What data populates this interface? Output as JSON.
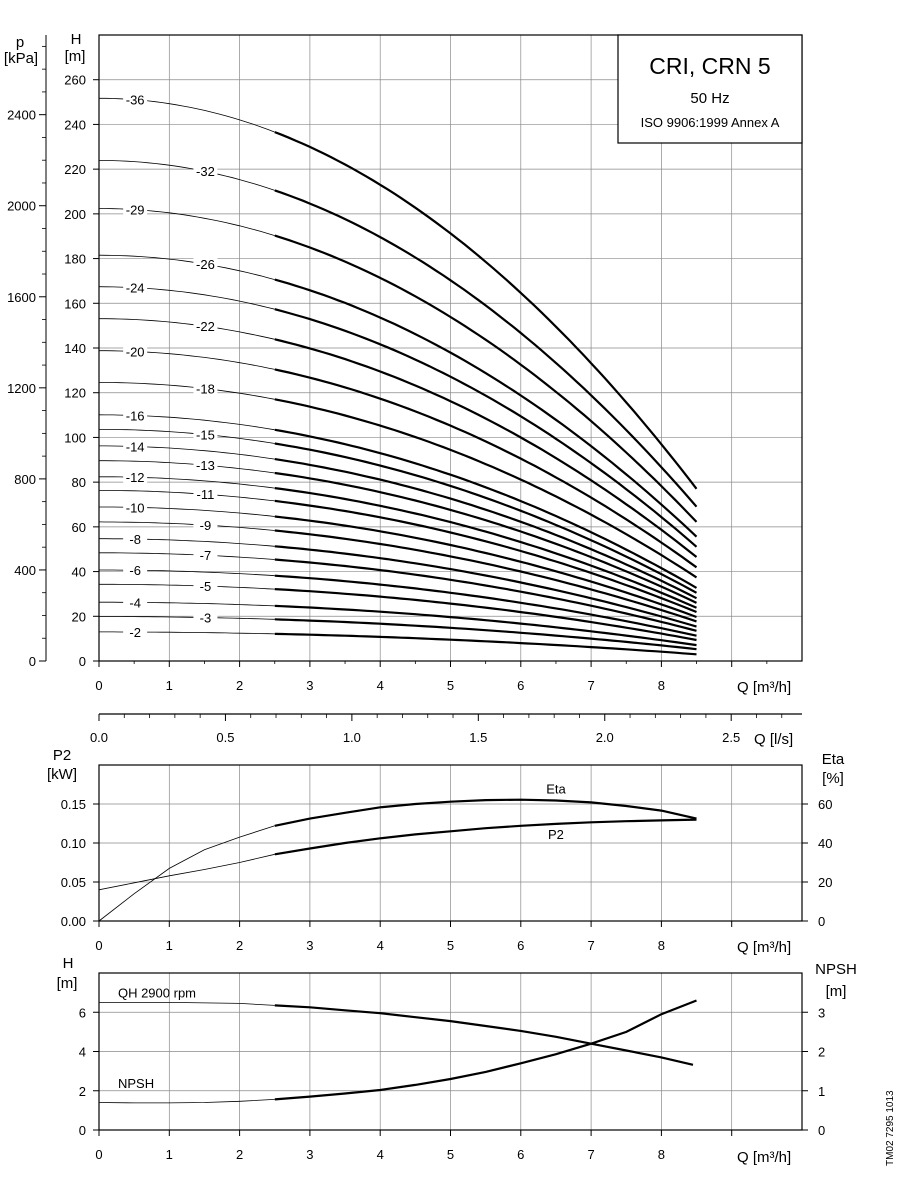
{
  "legend": {
    "title": "CRI, CRN 5",
    "frequency": "50 Hz",
    "standard": "ISO 9906:1999 Annex A"
  },
  "reference": "TM02 7295 1013",
  "chart_data": [
    {
      "type": "line",
      "id": "qh-curves",
      "ylabel": "H",
      "yunit": "[m]",
      "y2label": "p",
      "y2unit": "[kPa]",
      "xlabel": "Q [m³/h]",
      "xlim": [
        0,
        10
      ],
      "ylim": [
        0,
        280
      ],
      "y2lim": [
        0,
        2750
      ],
      "xticks": [
        0,
        1,
        2,
        3,
        4,
        5,
        6,
        7,
        8
      ],
      "yticks": [
        0,
        20,
        40,
        60,
        80,
        100,
        120,
        140,
        160,
        180,
        200,
        220,
        240,
        260
      ],
      "y2ticks": [
        0,
        400,
        800,
        1200,
        1600,
        2000,
        2400
      ],
      "q_operating_start": 2.5,
      "q_end": 8.5,
      "series": [
        {
          "name": "-2",
          "h0": 13.0,
          "h8_5": 3.0,
          "label_q": 0.5
        },
        {
          "name": "-3",
          "h0": 19.9,
          "h8_5": 5.3,
          "label_q": 1.5
        },
        {
          "name": "-4",
          "h0": 26.3,
          "h8_5": 7.1,
          "label_q": 0.5
        },
        {
          "name": "-5",
          "h0": 34.3,
          "h8_5": 9.4,
          "label_q": 1.5
        },
        {
          "name": "-6",
          "h0": 40.7,
          "h8_5": 11.3,
          "label_q": 0.5
        },
        {
          "name": "-7",
          "h0": 48.4,
          "h8_5": 13.5,
          "label_q": 1.5
        },
        {
          "name": "-8",
          "h0": 54.7,
          "h8_5": 15.4,
          "label_q": 0.5
        },
        {
          "name": "-9",
          "h0": 62.2,
          "h8_5": 17.7,
          "label_q": 1.5
        },
        {
          "name": "-10",
          "h0": 68.9,
          "h8_5": 19.7,
          "label_q": 0.5
        },
        {
          "name": "-11",
          "h0": 76.3,
          "h8_5": 21.9,
          "label_q": 1.5
        },
        {
          "name": "-12",
          "h0": 82.4,
          "h8_5": 23.8,
          "label_q": 0.5
        },
        {
          "name": "-13",
          "h0": 89.6,
          "h8_5": 26.0,
          "label_q": 1.5
        },
        {
          "name": "-14",
          "h0": 96.2,
          "h8_5": 28.1,
          "label_q": 0.5
        },
        {
          "name": "-15",
          "h0": 103.6,
          "h8_5": 30.5,
          "label_q": 1.5
        },
        {
          "name": "-16",
          "h0": 110.1,
          "h8_5": 32.7,
          "label_q": 0.5
        },
        {
          "name": "-18",
          "h0": 124.6,
          "h8_5": 37.4,
          "label_q": 1.5
        },
        {
          "name": "-20",
          "h0": 138.8,
          "h8_5": 41.9,
          "label_q": 0.5
        },
        {
          "name": "-22",
          "h0": 153.1,
          "h8_5": 46.5,
          "label_q": 1.5
        },
        {
          "name": "-24",
          "h0": 167.4,
          "h8_5": 51.1,
          "label_q": 0.5
        },
        {
          "name": "-26",
          "h0": 181.5,
          "h8_5": 55.6,
          "label_q": 1.5
        },
        {
          "name": "-29",
          "h0": 202.4,
          "h8_5": 62.2,
          "label_q": 0.5
        },
        {
          "name": "-32",
          "h0": 223.9,
          "h8_5": 69.0,
          "label_q": 1.5
        },
        {
          "name": "-36",
          "h0": 251.7,
          "h8_5": 77.0,
          "label_q": 0.5
        }
      ]
    },
    {
      "type": "line",
      "id": "flow-ls-axis",
      "xlabel": "Q [l/s]",
      "xlim": [
        0,
        2.78
      ],
      "xticks": [
        0.0,
        0.5,
        1.0,
        1.5,
        2.0,
        2.5
      ],
      "xtick_labels": [
        "0.0",
        "0.5",
        "1.0",
        "1.5",
        "2.0",
        "2.5"
      ]
    },
    {
      "type": "line",
      "id": "power-efficiency",
      "ylabel": "P2",
      "yunit": "[kW]",
      "y2label": "Eta",
      "y2unit": "[%]",
      "xlabel": "Q [m³/h]",
      "xlim": [
        0,
        10
      ],
      "ylim": [
        0,
        0.2
      ],
      "y2lim": [
        0,
        80
      ],
      "xticks": [
        0,
        1,
        2,
        3,
        4,
        5,
        6,
        7,
        8
      ],
      "yticks": [
        0.0,
        0.05,
        0.1,
        0.15
      ],
      "ytick_labels": [
        "0.00",
        "0.05",
        "0.10",
        "0.15"
      ],
      "y2ticks": [
        0,
        20,
        40,
        60
      ],
      "series": [
        {
          "name": "Eta",
          "axis": "right",
          "points": [
            [
              0,
              0
            ],
            [
              0.5,
              14
            ],
            [
              1,
              27
            ],
            [
              1.5,
              36.5
            ],
            [
              2,
              43
            ],
            [
              2.5,
              48.8
            ],
            [
              3,
              52.5
            ],
            [
              3.5,
              55.5
            ],
            [
              4,
              58.3
            ],
            [
              4.5,
              60
            ],
            [
              5,
              61.2
            ],
            [
              5.5,
              62
            ],
            [
              6,
              62.2
            ],
            [
              6.5,
              61.8
            ],
            [
              7,
              60.8
            ],
            [
              7.5,
              59
            ],
            [
              8,
              56.6
            ],
            [
              8.5,
              52.5
            ]
          ]
        },
        {
          "name": "P2",
          "axis": "left",
          "points": [
            [
              0,
              0.04
            ],
            [
              0.5,
              0.049
            ],
            [
              1,
              0.058
            ],
            [
              1.5,
              0.066
            ],
            [
              2,
              0.075
            ],
            [
              2.5,
              0.0855
            ],
            [
              3,
              0.093
            ],
            [
              3.5,
              0.1
            ],
            [
              4,
              0.106
            ],
            [
              4.5,
              0.111
            ],
            [
              5,
              0.115
            ],
            [
              5.5,
              0.119
            ],
            [
              6,
              0.122
            ],
            [
              6.5,
              0.1245
            ],
            [
              7,
              0.1265
            ],
            [
              7.5,
              0.128
            ],
            [
              8,
              0.129
            ],
            [
              8.5,
              0.13
            ]
          ]
        }
      ]
    },
    {
      "type": "line",
      "id": "qh-npsh",
      "ylabel": "H",
      "yunit": "[m]",
      "y2label": "NPSH",
      "y2unit": "[m]",
      "xlabel": "Q [m³/h]",
      "xlim": [
        0,
        10
      ],
      "ylim": [
        0,
        8
      ],
      "y2lim": [
        0,
        4
      ],
      "xticks": [
        0,
        1,
        2,
        3,
        4,
        5,
        6,
        7,
        8
      ],
      "yticks": [
        0,
        2,
        4,
        6
      ],
      "y2ticks": [
        0,
        1,
        2,
        3
      ],
      "series": [
        {
          "name": "QH 2900 rpm",
          "axis": "left",
          "points": [
            [
              0,
              6.5
            ],
            [
              1,
              6.5
            ],
            [
              2,
              6.45
            ],
            [
              2.5,
              6.35
            ],
            [
              3,
              6.25
            ],
            [
              3.5,
              6.1
            ],
            [
              4,
              5.95
            ],
            [
              4.5,
              5.75
            ],
            [
              5,
              5.55
            ],
            [
              5.5,
              5.3
            ],
            [
              6,
              5.05
            ],
            [
              6.5,
              4.75
            ],
            [
              7,
              4.4
            ],
            [
              7.5,
              4.05
            ],
            [
              8,
              3.7
            ],
            [
              8.45,
              3.32
            ]
          ]
        },
        {
          "name": "NPSH",
          "axis": "right",
          "points": [
            [
              0,
              0.7
            ],
            [
              0.5,
              0.69
            ],
            [
              1,
              0.69
            ],
            [
              1.5,
              0.7
            ],
            [
              2,
              0.73
            ],
            [
              2.5,
              0.78
            ],
            [
              3,
              0.85
            ],
            [
              3.5,
              0.93
            ],
            [
              4,
              1.02
            ],
            [
              4.5,
              1.15
            ],
            [
              5,
              1.3
            ],
            [
              5.5,
              1.48
            ],
            [
              6,
              1.7
            ],
            [
              6.5,
              1.93
            ],
            [
              7,
              2.2
            ],
            [
              7.5,
              2.5
            ],
            [
              8,
              2.95
            ],
            [
              8.5,
              3.3
            ]
          ]
        }
      ]
    }
  ]
}
